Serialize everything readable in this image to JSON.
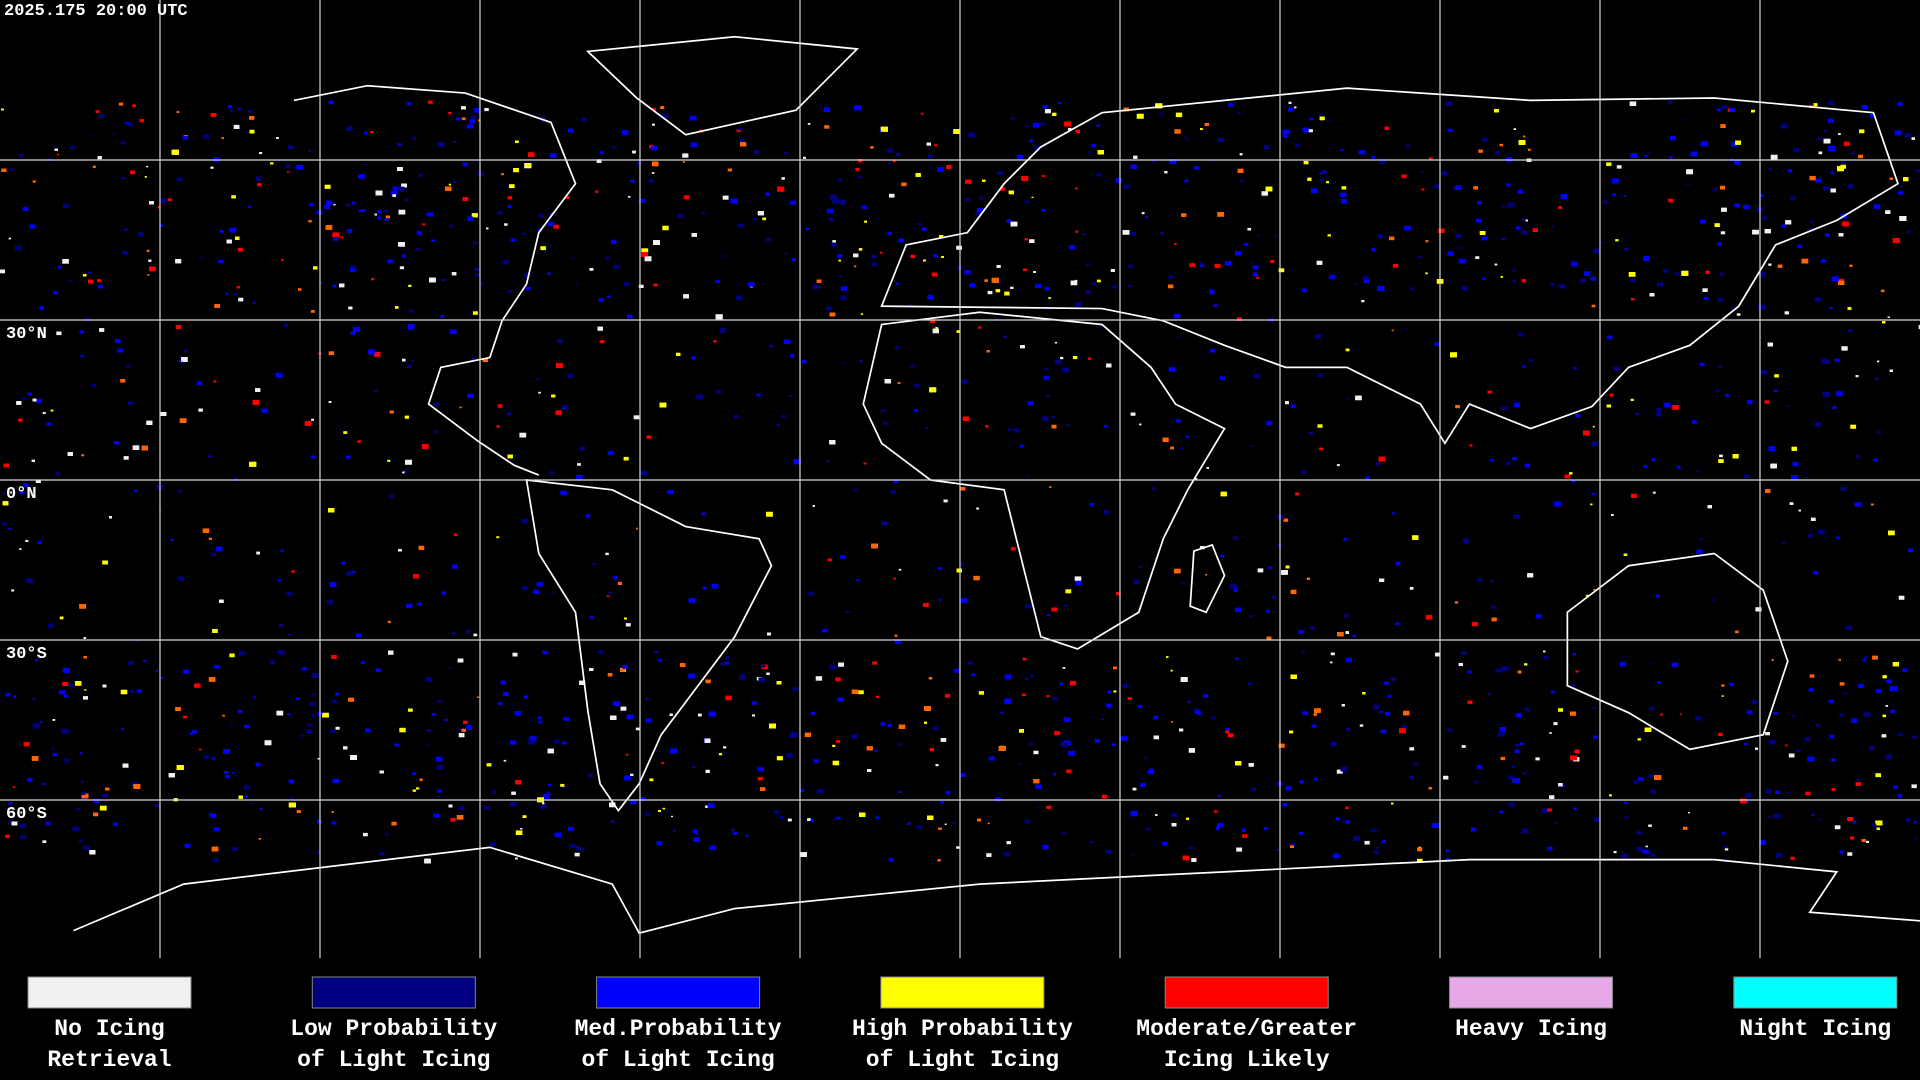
{
  "timestamp": "2025.175 20:00 UTC",
  "latitude_labels": [
    "30°N",
    "0°N",
    "30°S",
    "60°S"
  ],
  "legend": [
    {
      "lines": [
        "No Icing",
        "Retrieval"
      ],
      "color": "#f0f0f0"
    },
    {
      "lines": [
        "Low Probability",
        "of Light Icing"
      ],
      "color": "#000080"
    },
    {
      "lines": [
        "Med.Probability",
        "of Light Icing"
      ],
      "color": "#0000ff"
    },
    {
      "lines": [
        "High Probability",
        "of Light Icing"
      ],
      "color": "#ffff00"
    },
    {
      "lines": [
        "Moderate/Greater",
        "Icing Likely"
      ],
      "color": "#ff0000"
    },
    {
      "lines": [
        "Heavy Icing"
      ],
      "color": "#e6a8e6"
    },
    {
      "lines": [
        "Night Icing"
      ],
      "color": "#00ffff"
    }
  ]
}
